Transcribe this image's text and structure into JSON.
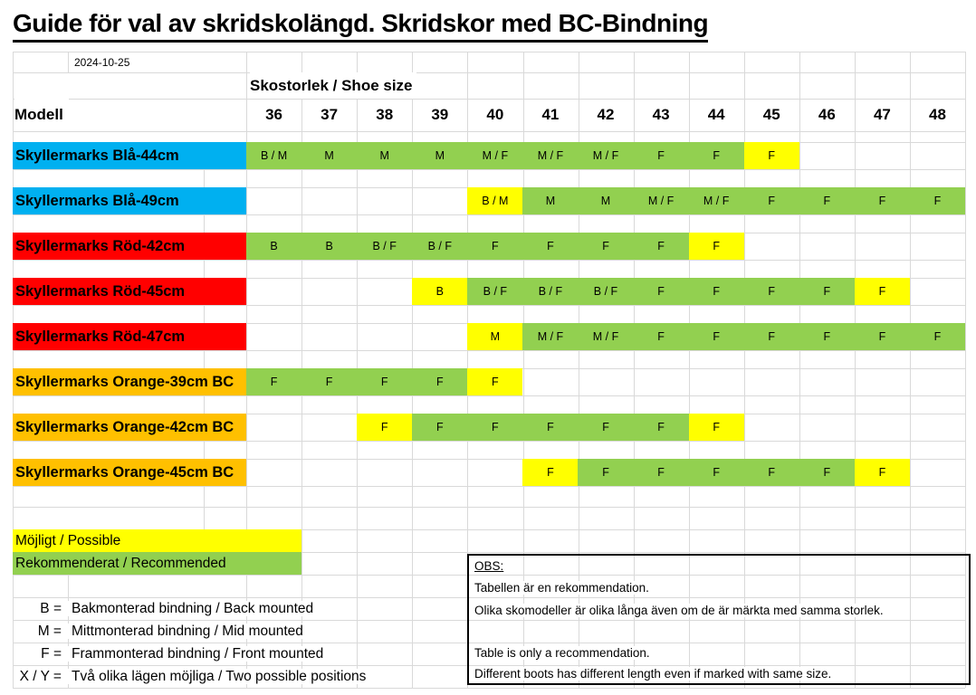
{
  "title": "Guide för val av skridskolängd. Skridskor med BC-Bindning",
  "date": "2024-10-25",
  "shoe_size_header": "Skostorlek / Shoe size",
  "model_header": "Modell",
  "sizes": [
    "36",
    "37",
    "38",
    "39",
    "40",
    "41",
    "42",
    "43",
    "44",
    "45",
    "46",
    "47",
    "48"
  ],
  "colors": {
    "cyan": "#00B0F0",
    "red": "#FF0000",
    "orange": "#FFC000",
    "yellow": "#FFFF00",
    "green": "#92D050",
    "grid": "#d9d9d9"
  },
  "state_legend": {
    "r": "recommended (green)",
    "p": "possible (yellow)"
  },
  "rows": [
    {
      "label": "Skyllermarks Blå-44cm",
      "label_color": "cyan",
      "cells": [
        [
          "B / M",
          "r"
        ],
        [
          "M",
          "r"
        ],
        [
          "M",
          "r"
        ],
        [
          "M",
          "r"
        ],
        [
          "M / F",
          "r"
        ],
        [
          "M / F",
          "r"
        ],
        [
          "M / F",
          "r"
        ],
        [
          "F",
          "r"
        ],
        [
          "F",
          "r"
        ],
        [
          "F",
          "p"
        ],
        null,
        null,
        null
      ]
    },
    {
      "label": "Skyllermarks Blå-49cm",
      "label_color": "cyan",
      "cells": [
        null,
        null,
        null,
        null,
        [
          "B / M",
          "p"
        ],
        [
          "M",
          "r"
        ],
        [
          "M",
          "r"
        ],
        [
          "M / F",
          "r"
        ],
        [
          "M / F",
          "r"
        ],
        [
          "F",
          "r"
        ],
        [
          "F",
          "r"
        ],
        [
          "F",
          "r"
        ],
        [
          "F",
          "r"
        ]
      ]
    },
    {
      "label": "Skyllermarks Röd-42cm",
      "label_color": "red",
      "cells": [
        [
          "B",
          "r"
        ],
        [
          "B",
          "r"
        ],
        [
          "B / F",
          "r"
        ],
        [
          "B / F",
          "r"
        ],
        [
          "F",
          "r"
        ],
        [
          "F",
          "r"
        ],
        [
          "F",
          "r"
        ],
        [
          "F",
          "r"
        ],
        [
          "F",
          "p"
        ],
        null,
        null,
        null,
        null
      ]
    },
    {
      "label": "Skyllermarks Röd-45cm",
      "label_color": "red",
      "cells": [
        null,
        null,
        null,
        [
          "B",
          "p"
        ],
        [
          "B / F",
          "r"
        ],
        [
          "B / F",
          "r"
        ],
        [
          "B / F",
          "r"
        ],
        [
          "F",
          "r"
        ],
        [
          "F",
          "r"
        ],
        [
          "F",
          "r"
        ],
        [
          "F",
          "r"
        ],
        [
          "F",
          "p"
        ],
        null
      ]
    },
    {
      "label": "Skyllermarks Röd-47cm",
      "label_color": "red",
      "cells": [
        null,
        null,
        null,
        null,
        [
          "M",
          "p"
        ],
        [
          "M / F",
          "r"
        ],
        [
          "M / F",
          "r"
        ],
        [
          "F",
          "r"
        ],
        [
          "F",
          "r"
        ],
        [
          "F",
          "r"
        ],
        [
          "F",
          "r"
        ],
        [
          "F",
          "r"
        ],
        [
          "F",
          "r"
        ]
      ]
    },
    {
      "label": "Skyllermarks Orange-39cm BC",
      "label_color": "orange",
      "cells": [
        [
          "F",
          "r"
        ],
        [
          "F",
          "r"
        ],
        [
          "F",
          "r"
        ],
        [
          "F",
          "r"
        ],
        [
          "F",
          "p"
        ],
        null,
        null,
        null,
        null,
        null,
        null,
        null,
        null
      ]
    },
    {
      "label": "Skyllermarks Orange-42cm BC",
      "label_color": "orange",
      "cells": [
        null,
        null,
        [
          "F",
          "p"
        ],
        [
          "F",
          "r"
        ],
        [
          "F",
          "r"
        ],
        [
          "F",
          "r"
        ],
        [
          "F",
          "r"
        ],
        [
          "F",
          "r"
        ],
        [
          "F",
          "p"
        ],
        null,
        null,
        null,
        null
      ]
    },
    {
      "label": "Skyllermarks Orange-45cm BC",
      "label_color": "orange",
      "cells": [
        null,
        null,
        null,
        null,
        null,
        [
          "F",
          "p"
        ],
        [
          "F",
          "r"
        ],
        [
          "F",
          "r"
        ],
        [
          "F",
          "r"
        ],
        [
          "F",
          "r"
        ],
        [
          "F",
          "r"
        ],
        [
          "F",
          "p"
        ],
        null
      ]
    }
  ],
  "legend": [
    {
      "label": "Möjligt / Possible",
      "style": "p"
    },
    {
      "label": "Rekommenderat / Recommended",
      "style": "r"
    }
  ],
  "key": [
    {
      "symbol": "B =",
      "text": "Bakmonterad bindning / Back mounted"
    },
    {
      "symbol": "M =",
      "text": "Mittmonterad bindning / Mid mounted"
    },
    {
      "symbol": "F =",
      "text": "Frammonterad bindning / Front mounted"
    },
    {
      "symbol": "X / Y =",
      "text": "Två olika lägen möjliga / Two possible positions"
    }
  ],
  "obs": {
    "heading": "OBS:",
    "lines": [
      "Tabellen är en rekommendation.",
      "Olika skomodeller är olika långa även om de är märkta med samma storlek.",
      "",
      "Table is only a recommendation.",
      "Different boots has different length even if marked with same size."
    ]
  }
}
